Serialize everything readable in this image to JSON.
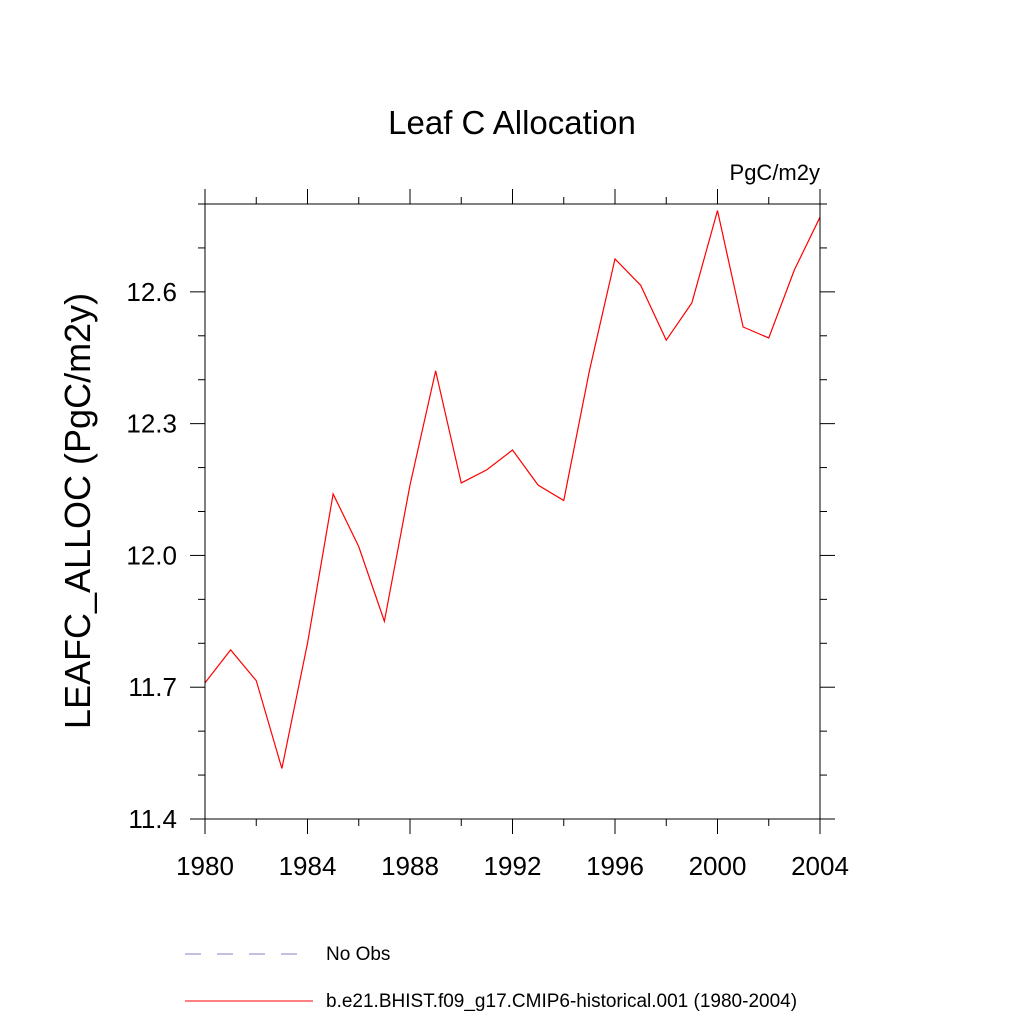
{
  "chart_data": {
    "type": "line",
    "title": "Leaf C Allocation",
    "units": "PgC/m2y",
    "ylabel": "LEAFC_ALLOC  (PgC/m2y)",
    "xlabel": "",
    "xlim": [
      1980,
      2004
    ],
    "ylim": [
      11.4,
      12.8
    ],
    "xticks": [
      1980,
      1984,
      1988,
      1992,
      1996,
      2000,
      2004
    ],
    "yticks": [
      11.4,
      11.7,
      12.0,
      12.3,
      12.6
    ],
    "ytick_labels": [
      "11.4",
      "11.7",
      "12.0",
      "12.3",
      "12.6"
    ],
    "x_minor_step": 2,
    "y_minor_step": 0.1,
    "grid": false,
    "series": [
      {
        "name": "b.e21.BHIST.f09_g17.CMIP6-historical.001 (1980-2004)",
        "color": "#ff0000",
        "x": [
          1980,
          1981,
          1982,
          1983,
          1984,
          1985,
          1986,
          1987,
          1988,
          1989,
          1990,
          1991,
          1992,
          1993,
          1994,
          1995,
          1996,
          1997,
          1998,
          1999,
          2000,
          2001,
          2002,
          2003,
          2004
        ],
        "values": [
          11.71,
          11.785,
          11.715,
          11.515,
          11.8,
          12.14,
          12.02,
          11.85,
          12.16,
          12.42,
          12.165,
          12.195,
          12.24,
          12.16,
          12.125,
          12.42,
          12.675,
          12.615,
          12.49,
          12.575,
          12.785,
          12.52,
          12.495,
          12.65,
          12.77
        ]
      }
    ],
    "legend": [
      {
        "label": "No Obs",
        "color": "#8080c0",
        "style": "dashed"
      },
      {
        "label": "b.e21.BHIST.f09_g17.CMIP6-historical.001 (1980-2004)",
        "color": "#ff0000",
        "style": "solid"
      }
    ]
  }
}
